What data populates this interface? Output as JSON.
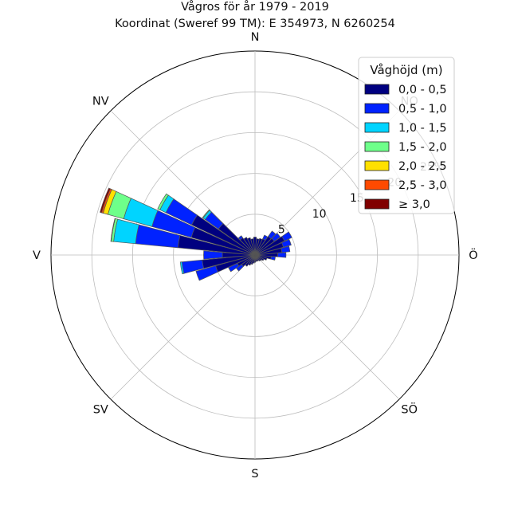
{
  "chart_data": {
    "type": "windrose",
    "title": "Vågros för år 1979 - 2019",
    "subtitle": "Koordinat (Sweref 99 TM): E 354973, N 6260254",
    "directions": [
      "N",
      "NV",
      "V",
      "SV",
      "S",
      "SÖ",
      "Ö",
      "NO"
    ],
    "radial_ticks": [
      "5",
      "10",
      "15",
      "20",
      "25%"
    ],
    "radial_max": 25,
    "legend": {
      "title": "Våghöjd (m)",
      "placement": "top-right",
      "bins": [
        "0,0 - 0,5",
        "0,5 - 1,0",
        "1,0 - 1,5",
        "1,5 - 2,0",
        "2,0 - 2,5",
        "2,5 - 3,0",
        "≥ 3,0"
      ],
      "colors": [
        "#000080",
        "#0022ff",
        "#00d4ff",
        "#6eff8a",
        "#ffe000",
        "#ff4a00",
        "#800000"
      ]
    },
    "sector_width_deg": 10,
    "sectors": [
      {
        "direction_deg": 0,
        "values": [
          2.2
        ]
      },
      {
        "direction_deg": 10,
        "values": [
          2.0
        ]
      },
      {
        "direction_deg": 20,
        "values": [
          2.1
        ]
      },
      {
        "direction_deg": 30,
        "values": [
          2.2,
          0.5
        ]
      },
      {
        "direction_deg": 40,
        "values": [
          2.8,
          0.8
        ]
      },
      {
        "direction_deg": 50,
        "values": [
          2.9,
          0.9
        ]
      },
      {
        "direction_deg": 60,
        "values": [
          4.0,
          1.0
        ]
      },
      {
        "direction_deg": 70,
        "values": [
          3.6,
          1.0
        ]
      },
      {
        "direction_deg": 80,
        "values": [
          3.3,
          1.0
        ]
      },
      {
        "direction_deg": 90,
        "values": [
          2.8,
          1.0
        ]
      },
      {
        "direction_deg": 100,
        "values": [
          2.0,
          0.5
        ]
      },
      {
        "direction_deg": 110,
        "values": [
          1.5
        ]
      },
      {
        "direction_deg": 120,
        "values": [
          1.2
        ]
      },
      {
        "direction_deg": 130,
        "values": [
          1.0
        ]
      },
      {
        "direction_deg": 140,
        "values": [
          0.9
        ]
      },
      {
        "direction_deg": 150,
        "values": [
          0.8
        ]
      },
      {
        "direction_deg": 160,
        "values": [
          0.8
        ]
      },
      {
        "direction_deg": 170,
        "values": [
          0.8
        ]
      },
      {
        "direction_deg": 180,
        "values": [
          0.9
        ]
      },
      {
        "direction_deg": 190,
        "values": [
          1.0
        ]
      },
      {
        "direction_deg": 200,
        "values": [
          1.2
        ]
      },
      {
        "direction_deg": 210,
        "values": [
          1.4
        ]
      },
      {
        "direction_deg": 220,
        "values": [
          1.7
        ]
      },
      {
        "direction_deg": 230,
        "values": [
          2.0,
          0.8
        ]
      },
      {
        "direction_deg": 240,
        "values": [
          2.4,
          1.2
        ]
      },
      {
        "direction_deg": 250,
        "values": [
          5.0,
          2.5
        ]
      },
      {
        "direction_deg": 260,
        "values": [
          6.5,
          2.5,
          0.2
        ]
      },
      {
        "direction_deg": 270,
        "values": [
          4.0,
          2.3
        ]
      },
      {
        "direction_deg": 280,
        "values": [
          9.5,
          5.2,
          2.7,
          0.3,
          0.03,
          0.02
        ]
      },
      {
        "direction_deg": 290,
        "values": [
          8.1,
          5.0,
          3.6,
          2.0,
          0.6,
          0.2,
          0.2
        ]
      },
      {
        "direction_deg": 300,
        "values": [
          8.6,
          3.5,
          0.8,
          0.3
        ]
      },
      {
        "direction_deg": 310,
        "values": [
          5.5,
          2.0,
          0.3,
          0.1
        ]
      },
      {
        "direction_deg": 320,
        "values": [
          2.6,
          0.3
        ]
      },
      {
        "direction_deg": 330,
        "values": [
          2.4
        ]
      },
      {
        "direction_deg": 340,
        "values": [
          2.2
        ]
      },
      {
        "direction_deg": 350,
        "values": [
          2.0
        ]
      }
    ]
  }
}
